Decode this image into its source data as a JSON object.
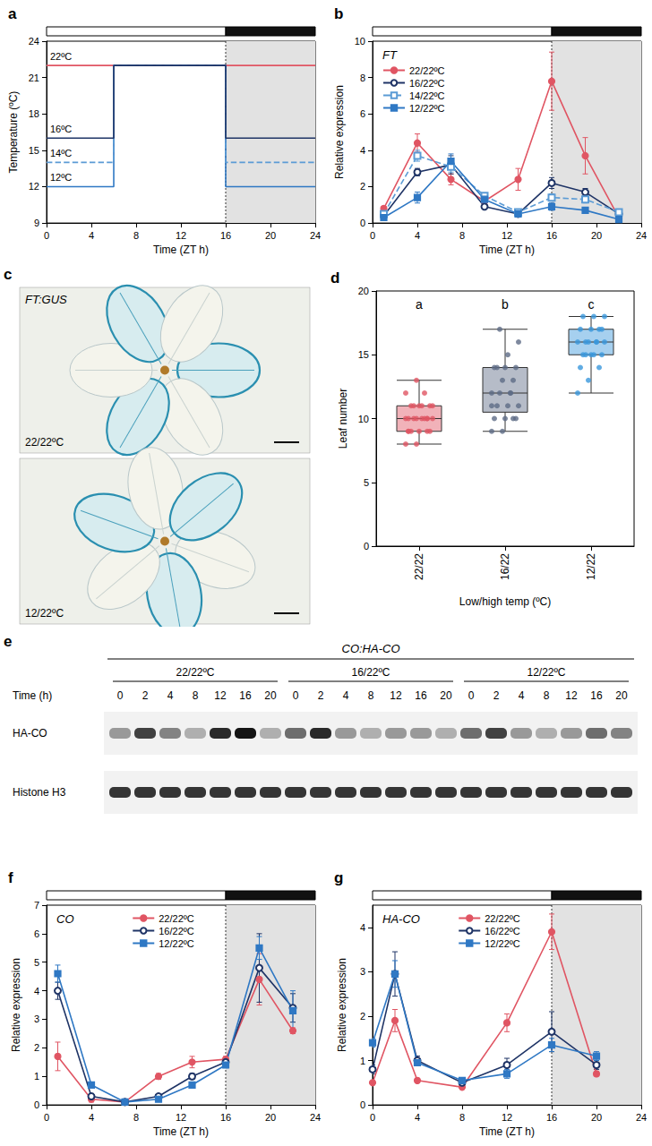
{
  "chart_data": [
    {
      "label": "a",
      "type": "line",
      "x_label": "Time (ZT h)",
      "y_label": "Temperature (ºC)",
      "xlim": [
        0,
        24
      ],
      "xticks": [
        0,
        4,
        8,
        12,
        16,
        20,
        24
      ],
      "ylim": [
        9,
        24
      ],
      "yticks": [
        9,
        12,
        15,
        18,
        21,
        24
      ],
      "dark_period": [
        16,
        24
      ],
      "grid": false,
      "series": [
        {
          "name": "22ºC",
          "color": "#e05563",
          "line_style": "solid",
          "x": [
            0,
            24
          ],
          "values": [
            22,
            22
          ]
        },
        {
          "name": "12ºC",
          "color": "#2f78c4",
          "line_style": "solid",
          "x": [
            0,
            6,
            6,
            16,
            16,
            24
          ],
          "values": [
            12,
            12,
            22,
            22,
            12,
            12
          ]
        },
        {
          "name": "14ºC",
          "color": "#5b9bd5",
          "line_style": "dashed",
          "x": [
            0,
            6,
            6,
            16,
            16,
            24
          ],
          "values": [
            14,
            14,
            22,
            22,
            14,
            14
          ]
        },
        {
          "name": "16ºC",
          "color": "#1f3466",
          "line_style": "solid",
          "x": [
            0,
            6,
            6,
            16,
            16,
            24
          ],
          "values": [
            16,
            16,
            22,
            22,
            16,
            16
          ]
        }
      ]
    },
    {
      "label": "b",
      "type": "line",
      "title": "FT",
      "x_label": "Time (ZT h)",
      "y_label": "Relative expression",
      "xlim": [
        0,
        24
      ],
      "xticks": [
        0,
        4,
        8,
        12,
        16,
        20,
        24
      ],
      "ylim": [
        0,
        10
      ],
      "yticks": [
        0,
        2,
        4,
        6,
        8,
        10
      ],
      "dark_period": [
        16,
        24
      ],
      "grid": false,
      "legend": "top-left",
      "x": [
        1,
        4,
        7,
        10,
        13,
        16,
        19,
        22
      ],
      "series": [
        {
          "name": "22/22ºC",
          "color": "#e05563",
          "marker": "circle",
          "line_style": "solid",
          "values": [
            0.8,
            4.4,
            2.4,
            1.2,
            2.4,
            7.8,
            3.7,
            0.3
          ],
          "errors": [
            0.1,
            0.5,
            0.3,
            0.2,
            0.6,
            1.6,
            1.0,
            0.1
          ]
        },
        {
          "name": "16/22ºC",
          "color": "#1f3466",
          "marker": "open circle",
          "line_style": "solid",
          "values": [
            0.4,
            2.8,
            3.2,
            0.9,
            0.5,
            2.2,
            1.7,
            0.5
          ],
          "errors": [
            0.1,
            0.2,
            0.5,
            0.1,
            0.1,
            0.3,
            0.2,
            0.1
          ]
        },
        {
          "name": "14/22ºC",
          "color": "#5b9bd5",
          "marker": "open square",
          "line_style": "dashed",
          "values": [
            0.5,
            3.7,
            3.1,
            1.5,
            0.6,
            1.4,
            1.3,
            0.6
          ],
          "errors": [
            0.1,
            0.3,
            0.3,
            0.1,
            0.1,
            0.2,
            0.2,
            0.1
          ]
        },
        {
          "name": "12/22ºC",
          "color": "#2f78c4",
          "marker": "square",
          "line_style": "solid",
          "values": [
            0.3,
            1.4,
            3.4,
            1.3,
            0.5,
            0.9,
            0.7,
            0.2
          ],
          "errors": [
            0.1,
            0.3,
            0.4,
            0.1,
            0.1,
            0.2,
            0.1,
            0.05
          ]
        }
      ]
    },
    {
      "label": "c",
      "type": "image",
      "title": "FT:GUS",
      "images": [
        "22/22ºC",
        "12/22ºC"
      ]
    },
    {
      "label": "d",
      "type": "boxplot",
      "x_label": "Low/high temp (ºC)",
      "y_label": "Leaf number",
      "categories": [
        "22/22",
        "16/22",
        "12/22"
      ],
      "ylim": [
        0,
        20
      ],
      "yticks": [
        0,
        5,
        10,
        15,
        20
      ],
      "grid": false,
      "colors": [
        "#e05563",
        "#5e6b86",
        "#3a97dc"
      ],
      "group_letters": [
        "a",
        "b",
        "c"
      ],
      "values": [
        [
          8,
          9,
          10,
          11,
          13
        ],
        [
          9,
          10.5,
          12,
          14,
          17
        ],
        [
          12,
          15,
          16,
          17,
          18
        ]
      ],
      "points": [
        [
          8,
          8,
          9,
          9,
          9,
          9,
          9,
          10,
          10,
          10,
          10,
          10,
          10,
          10,
          10,
          11,
          11,
          11,
          11,
          11,
          11,
          12,
          12,
          13,
          10,
          9
        ],
        [
          9,
          9,
          10,
          10,
          10,
          10,
          11,
          11,
          11,
          12,
          12,
          12,
          13,
          13,
          14,
          14,
          14,
          14,
          15,
          16,
          17,
          12,
          11
        ],
        [
          12,
          13,
          14,
          14,
          15,
          15,
          15,
          15,
          16,
          16,
          16,
          16,
          16,
          17,
          17,
          17,
          17,
          18,
          18,
          18,
          15,
          16
        ]
      ]
    },
    {
      "label": "e",
      "type": "blot",
      "title": "CO:HA-CO",
      "lane_label": "Time (h)",
      "groups": [
        "22/22ºC",
        "16/22ºC",
        "12/22ºC"
      ],
      "times": [
        0,
        2,
        4,
        8,
        12,
        16,
        20
      ],
      "rows": [
        {
          "name": "HA-CO",
          "intensity": [
            0.4,
            0.8,
            0.5,
            0.3,
            0.9,
            1.0,
            0.3,
            0.6,
            0.9,
            0.4,
            0.3,
            0.4,
            0.4,
            0.3,
            0.6,
            0.8,
            0.4,
            0.3,
            0.4,
            0.6,
            0.5
          ]
        },
        {
          "name": "Histone H3",
          "intensity": [
            0.85,
            0.85,
            0.85,
            0.85,
            0.85,
            0.85,
            0.85,
            0.85,
            0.85,
            0.85,
            0.85,
            0.85,
            0.85,
            0.85,
            0.85,
            0.85,
            0.85,
            0.85,
            0.85,
            0.85,
            0.85
          ]
        }
      ]
    },
    {
      "label": "f",
      "type": "line",
      "title": "CO",
      "x_label": "Time (ZT h)",
      "y_label": "Relative expression",
      "xlim": [
        0,
        24
      ],
      "xticks": [
        0,
        4,
        8,
        12,
        16,
        20,
        24
      ],
      "ylim": [
        0,
        7
      ],
      "yticks": [
        0,
        1,
        2,
        3,
        4,
        5,
        6,
        7
      ],
      "dark_period": [
        16,
        24
      ],
      "grid": false,
      "legend": "top",
      "x": [
        1,
        4,
        7,
        10,
        13,
        16,
        19,
        22
      ],
      "series": [
        {
          "name": "22/22ºC",
          "color": "#e05563",
          "marker": "circle",
          "line_style": "solid",
          "values": [
            1.7,
            0.2,
            0.1,
            1.0,
            1.5,
            1.6,
            4.4,
            2.6
          ],
          "errors": [
            0.5,
            0.1,
            0.05,
            0.1,
            0.2,
            0.1,
            0.9,
            0.1
          ]
        },
        {
          "name": "16/22ºC",
          "color": "#1f3466",
          "marker": "open circle",
          "line_style": "solid",
          "values": [
            4.0,
            0.3,
            0.1,
            0.3,
            1.0,
            1.5,
            4.8,
            3.4
          ],
          "errors": [
            0.3,
            0.1,
            0.05,
            0.05,
            0.1,
            0.1,
            1.2,
            0.5
          ]
        },
        {
          "name": "12/22ºC",
          "color": "#2f78c4",
          "marker": "square",
          "line_style": "solid",
          "values": [
            4.6,
            0.7,
            0.1,
            0.2,
            0.7,
            1.4,
            5.5,
            3.3
          ],
          "errors": [
            0.3,
            0.1,
            0.05,
            0.05,
            0.05,
            0.1,
            0.4,
            0.7
          ]
        }
      ]
    },
    {
      "label": "g",
      "type": "line",
      "title": "HA-CO",
      "x_label": "Time (ZT h)",
      "y_label": "Relative expression",
      "xlim": [
        0,
        24
      ],
      "xticks": [
        0,
        4,
        8,
        12,
        16,
        20,
        24
      ],
      "ylim": [
        0,
        4.5
      ],
      "yticks": [
        0,
        1,
        2,
        3,
        4
      ],
      "dark_period": [
        16,
        24
      ],
      "grid": false,
      "legend": "top",
      "x": [
        0,
        2,
        4,
        8,
        12,
        16,
        20
      ],
      "series": [
        {
          "name": "22/22ºC",
          "color": "#e05563",
          "marker": "circle",
          "line_style": "solid",
          "values": [
            0.5,
            1.9,
            0.55,
            0.4,
            1.85,
            3.9,
            0.7
          ],
          "errors": [
            0.05,
            0.25,
            0.05,
            0.05,
            0.2,
            0.4,
            0.05
          ]
        },
        {
          "name": "16/22ºC",
          "color": "#1f3466",
          "marker": "open circle",
          "line_style": "solid",
          "values": [
            0.8,
            2.95,
            1.0,
            0.5,
            0.9,
            1.65,
            0.9
          ],
          "errors": [
            0.1,
            0.5,
            0.1,
            0.05,
            0.15,
            0.45,
            0.1
          ]
        },
        {
          "name": "12/22ºC",
          "color": "#2f78c4",
          "marker": "square",
          "line_style": "solid",
          "values": [
            1.4,
            2.95,
            0.95,
            0.55,
            0.7,
            1.35,
            1.1
          ],
          "errors": [
            0.1,
            0.3,
            0.05,
            0.05,
            0.1,
            0.15,
            0.1
          ]
        }
      ]
    }
  ]
}
